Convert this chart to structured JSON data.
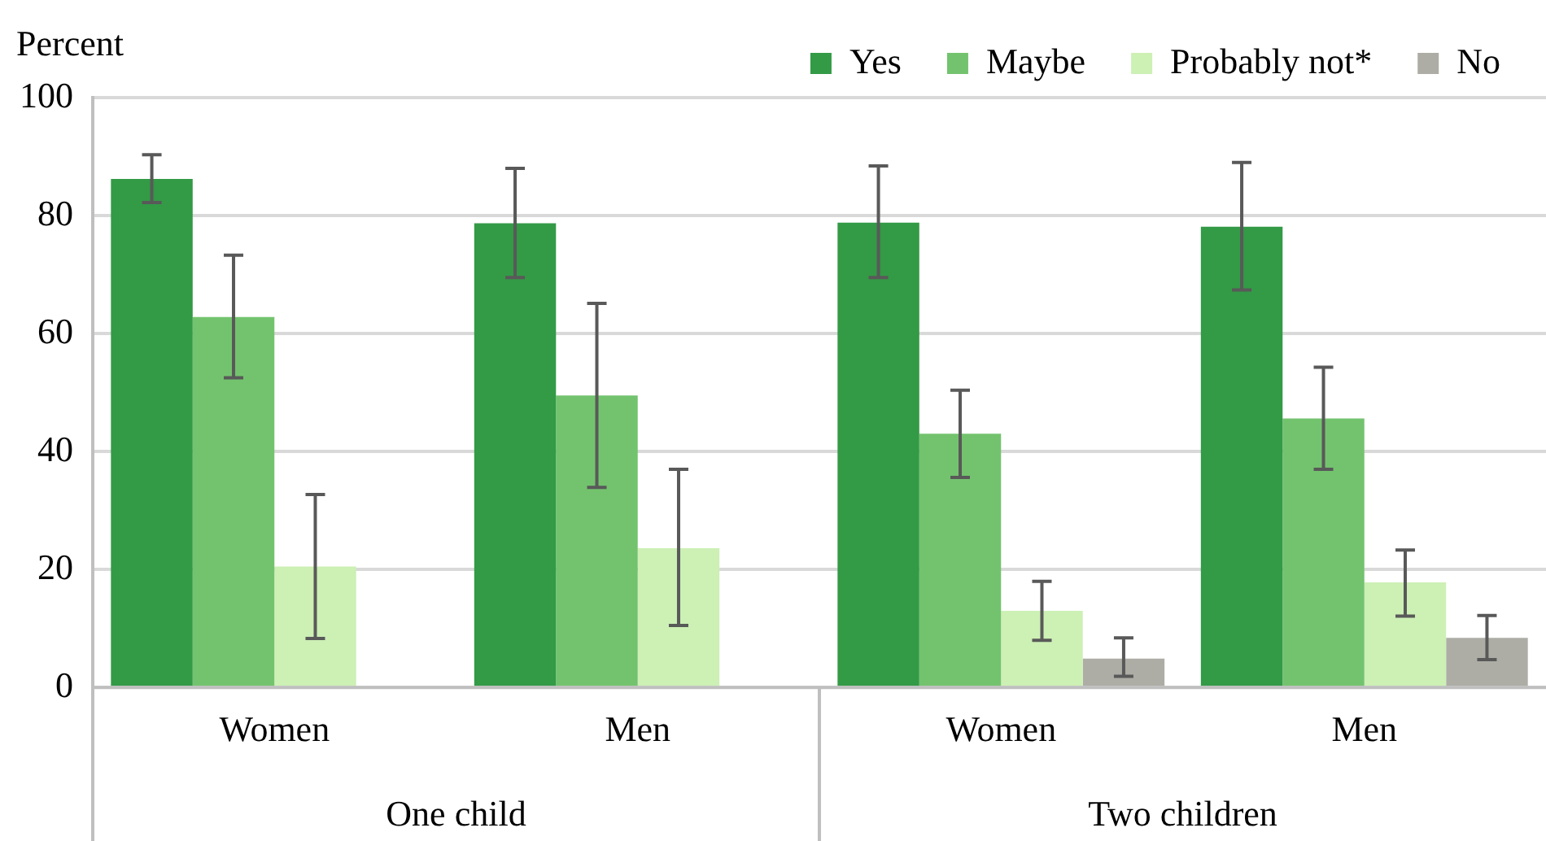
{
  "chart_data": {
    "type": "bar",
    "ylabel": "Percent",
    "categories": [
      "Women",
      "Men",
      "Women",
      "Men"
    ],
    "annotations": [
      "One child",
      "Two children"
    ],
    "series": [
      {
        "name": "Yes",
        "color": "#339a46",
        "values": [
          86.2,
          78.7,
          78.8,
          78.1
        ],
        "errors": [
          [
            82.2,
            90.3
          ],
          [
            69.5,
            88.0
          ],
          [
            69.5,
            88.4
          ],
          [
            67.4,
            89.0
          ]
        ]
      },
      {
        "name": "Maybe",
        "color": "#73c36e",
        "values": [
          62.8,
          49.5,
          43.0,
          45.6
        ],
        "errors": [
          [
            52.5,
            73.3
          ],
          [
            33.9,
            65.1
          ],
          [
            35.6,
            50.4
          ],
          [
            37.0,
            54.3
          ]
        ]
      },
      {
        "name": "Probably not*",
        "color": "#cdf0b5",
        "values": [
          20.5,
          23.6,
          13.0,
          17.8
        ],
        "errors": [
          [
            8.3,
            32.7
          ],
          [
            10.5,
            37.0
          ],
          [
            8.0,
            18.0
          ],
          [
            12.1,
            23.3
          ]
        ]
      },
      {
        "name": "No",
        "color": "#adada6",
        "values": [
          null,
          null,
          4.9,
          8.4
        ],
        "errors": [
          null,
          null,
          [
            1.9,
            8.4
          ],
          [
            4.7,
            12.2
          ]
        ]
      }
    ],
    "ylim": [
      0,
      100
    ],
    "yticks": [
      0,
      20,
      40,
      60,
      80,
      100
    ],
    "grid": "y",
    "legend": "top right"
  }
}
